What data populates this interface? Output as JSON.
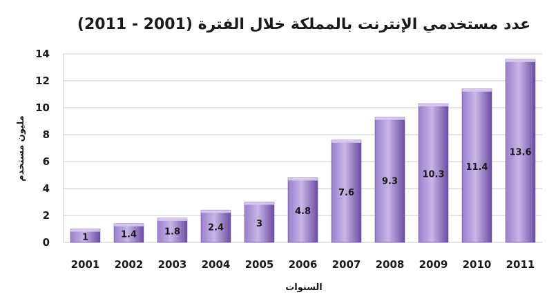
{
  "chart_data": {
    "type": "bar",
    "title": "عدد مستخدمي الإنترنت بالمملكة خلال الفترة (2001 - 2011)",
    "xlabel": "السنوات",
    "ylabel": "مليون مستخدم",
    "categories": [
      "2001",
      "2002",
      "2003",
      "2004",
      "2005",
      "2006",
      "2007",
      "2008",
      "2009",
      "2010",
      "2011"
    ],
    "values": [
      1,
      1.4,
      1.8,
      2.4,
      3,
      4.8,
      7.6,
      9.3,
      10.3,
      11.4,
      13.6
    ],
    "data_labels": [
      "1",
      "1.4",
      "1.8",
      "2.4",
      "3",
      "4.8",
      "7.6",
      "9.3",
      "10.3",
      "11.4",
      "13.6"
    ],
    "yticks": [
      "0",
      "2",
      "4",
      "6",
      "8",
      "10",
      "12",
      "14"
    ],
    "ylim": [
      0,
      14
    ],
    "grid": true,
    "legend": "none",
    "colors": {
      "bar_light": "#c7b6e6",
      "bar_mid": "#9a7fce",
      "bar_dark": "#6c4ea3",
      "bar_top": "#d9ccf0",
      "grid": "#c8c8c8",
      "text": "#1a1a1a"
    }
  }
}
